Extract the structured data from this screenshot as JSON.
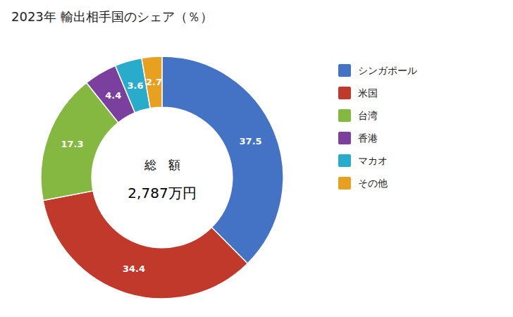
{
  "chart_data": {
    "type": "donut",
    "title": "2023年 輸出相手国のシェア（％）",
    "annotations": [
      "総　額",
      "2,787万円"
    ],
    "categories": [
      "シンガポール",
      "米国",
      "台湾",
      "香港",
      "マカオ",
      "その他"
    ],
    "values": [
      37.5,
      34.4,
      17.3,
      4.4,
      3.6,
      2.7
    ],
    "colors": [
      "#4472C4",
      "#C0392B",
      "#84B840",
      "#7B3F9E",
      "#29ABCC",
      "#E8A020"
    ],
    "data_labels": true,
    "legend": "right"
  }
}
